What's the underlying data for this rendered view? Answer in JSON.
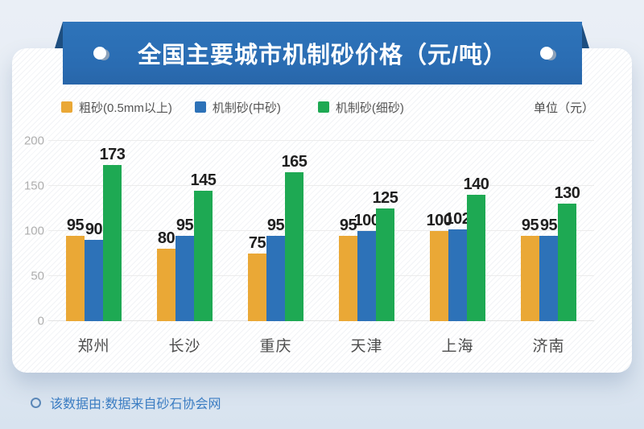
{
  "banner": {
    "title": "全国主要城市机制砂价格（元/吨）",
    "background_color": "#2a6cb2",
    "fold_color": "#1d4e80"
  },
  "legend": {
    "unit_label": "单位（元）"
  },
  "chart_data": {
    "type": "bar",
    "title": "全国主要城市机制砂价格（元/吨）",
    "categories": [
      "郑州",
      "长沙",
      "重庆",
      "天津",
      "上海",
      "济南"
    ],
    "series": [
      {
        "name": "粗砂(0.5mm以上)",
        "color": "#EAA836",
        "values": [
          95,
          80,
          75,
          95,
          100,
          95
        ]
      },
      {
        "name": "机制砂(中砂)",
        "color": "#2D72B8",
        "values": [
          90,
          95,
          95,
          100,
          102,
          95
        ]
      },
      {
        "name": "机制砂(细砂)",
        "color": "#1EA953",
        "values": [
          173,
          145,
          165,
          125,
          140,
          130
        ]
      }
    ],
    "ylabel": "",
    "xlabel": "",
    "ylim": [
      0,
      200
    ],
    "ytick_step": 50,
    "grid": true,
    "legend_position": "top",
    "value_labels_shown": true
  },
  "footer": {
    "text": "该数据由:数据来自砂石协会网"
  }
}
